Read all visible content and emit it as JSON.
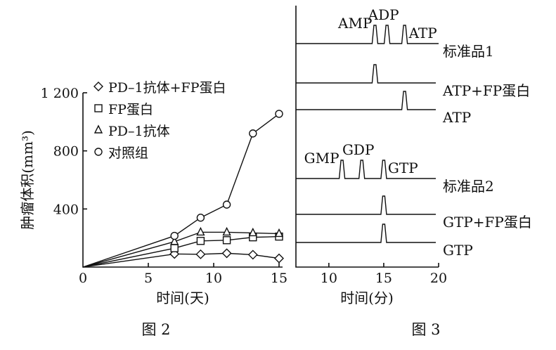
{
  "figure2": {
    "caption": "图 2",
    "chart_data": {
      "type": "line",
      "xlabel": "时间(天)",
      "ylabel": "肿瘤体积(mm³)",
      "xlim": [
        0,
        15
      ],
      "ylim": [
        0,
        1200
      ],
      "xticks": [
        0,
        5,
        10,
        15
      ],
      "yticks": [
        400,
        800,
        1200
      ],
      "ytick_labels": [
        "400",
        "800",
        "1 200"
      ],
      "legend_position": "top-left",
      "series": [
        {
          "name": "PD–1抗体+FP蛋白",
          "marker": "diamond",
          "x": [
            0,
            7,
            9,
            11,
            13,
            15
          ],
          "y": [
            0,
            90,
            88,
            95,
            85,
            60
          ]
        },
        {
          "name": "FP蛋白",
          "marker": "square",
          "x": [
            0,
            7,
            9,
            11,
            13,
            15
          ],
          "y": [
            0,
            130,
            180,
            185,
            205,
            210
          ]
        },
        {
          "name": "PD–1抗体",
          "marker": "triangle",
          "x": [
            0,
            7,
            9,
            11,
            13,
            15
          ],
          "y": [
            0,
            175,
            240,
            240,
            235,
            230
          ]
        },
        {
          "name": "对照组",
          "marker": "circle",
          "x": [
            0,
            7,
            9,
            11,
            13,
            15
          ],
          "y": [
            0,
            215,
            340,
            430,
            920,
            1055
          ]
        }
      ]
    }
  },
  "figure3": {
    "caption": "图 3",
    "chart_data": {
      "type": "line",
      "xlabel": "时间(分)",
      "xlim": [
        7,
        20
      ],
      "xticks": [
        10,
        15,
        20
      ],
      "traces": [
        {
          "name": "标准品1",
          "peaks": [
            14.2,
            15.3,
            16.9
          ],
          "peak_labels": [
            "AMP",
            "ADP",
            "ATP"
          ]
        },
        {
          "name": "ATP+FP蛋白",
          "peaks": [
            14.2
          ],
          "peak_labels": []
        },
        {
          "name": "ATP",
          "peaks": [
            16.9
          ],
          "peak_labels": []
        },
        {
          "name": "标准品2",
          "peaks": [
            11.2,
            13.0,
            15.0
          ],
          "peak_labels": [
            "GMP",
            "GDP",
            "GTP"
          ]
        },
        {
          "name": "GTP+FP蛋白",
          "peaks": [
            15.0
          ],
          "peak_labels": []
        },
        {
          "name": "GTP",
          "peaks": [
            15.0
          ],
          "peak_labels": []
        }
      ]
    }
  }
}
